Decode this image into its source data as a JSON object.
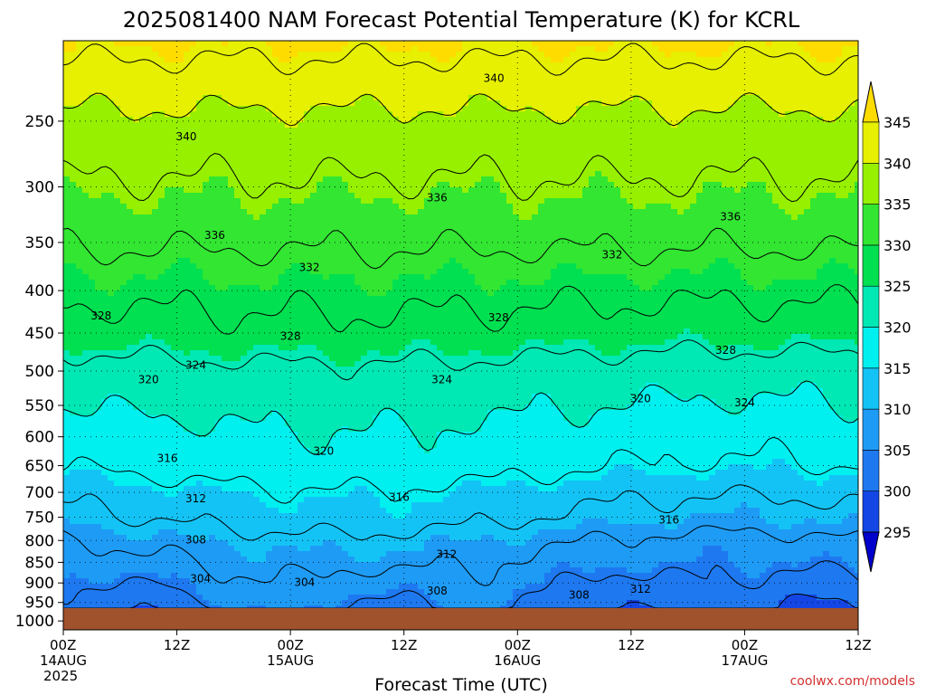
{
  "chart_data": {
    "type": "heatmap",
    "title": "2025081400 NAM Forecast Potential Temperature (K) for KCRL",
    "xlabel": "Forecast Time (UTC)",
    "ylabel": "",
    "credit": "coolwx.com/models",
    "y_scale": "pressure",
    "ylim": [
      1025,
      200
    ],
    "y_ticks": [
      "250",
      "300",
      "350",
      "400",
      "450",
      "500",
      "550",
      "600",
      "650",
      "700",
      "750",
      "800",
      "850",
      "900",
      "950",
      "1000"
    ],
    "x_ticks": [
      {
        "hours": 0,
        "line1": "00Z",
        "line2": "14AUG",
        "line3": "2025"
      },
      {
        "hours": 12,
        "line1": "12Z",
        "line2": "",
        "line3": ""
      },
      {
        "hours": 24,
        "line1": "00Z",
        "line2": "15AUG",
        "line3": ""
      },
      {
        "hours": 36,
        "line1": "12Z",
        "line2": "",
        "line3": ""
      },
      {
        "hours": 48,
        "line1": "00Z",
        "line2": "16AUG",
        "line3": ""
      },
      {
        "hours": 60,
        "line1": "12Z",
        "line2": "",
        "line3": ""
      },
      {
        "hours": 72,
        "line1": "00Z",
        "line2": "17AUG",
        "line3": ""
      },
      {
        "hours": 84,
        "line1": "12Z",
        "line2": "",
        "line3": ""
      }
    ],
    "xlim_hours": [
      0,
      84
    ],
    "colorbar": {
      "levels": [
        295,
        300,
        305,
        310,
        315,
        320,
        325,
        330,
        335,
        340,
        345
      ],
      "colors": [
        "#0000cc",
        "#1446e6",
        "#1e78f0",
        "#1e9bf5",
        "#14c3f5",
        "#00f0f0",
        "#00e8b4",
        "#00e050",
        "#32e632",
        "#96f000",
        "#e6f000",
        "#ffdc00"
      ],
      "labels": [
        "295",
        "300",
        "305",
        "310",
        "315",
        "320",
        "325",
        "330",
        "335",
        "340",
        "345"
      ]
    },
    "surface_pressure": 965,
    "contour_interval": 4,
    "contour_labels": [
      {
        "text": "340",
        "hours": 45.5,
        "p": 222
      },
      {
        "text": "340",
        "hours": 13.0,
        "p": 261
      },
      {
        "text": "336",
        "hours": 39.5,
        "p": 309
      },
      {
        "text": "336",
        "hours": 16.0,
        "p": 343
      },
      {
        "text": "336",
        "hours": 70.5,
        "p": 326
      },
      {
        "text": "332",
        "hours": 26.0,
        "p": 375
      },
      {
        "text": "332",
        "hours": 58.0,
        "p": 362
      },
      {
        "text": "328",
        "hours": 4.0,
        "p": 429
      },
      {
        "text": "328",
        "hours": 24.0,
        "p": 454
      },
      {
        "text": "328",
        "hours": 46.0,
        "p": 431
      },
      {
        "text": "328",
        "hours": 70.0,
        "p": 472
      },
      {
        "text": "324",
        "hours": 14.0,
        "p": 492
      },
      {
        "text": "324",
        "hours": 40.0,
        "p": 512
      },
      {
        "text": "324",
        "hours": 72.0,
        "p": 546
      },
      {
        "text": "320",
        "hours": 9.0,
        "p": 512
      },
      {
        "text": "320",
        "hours": 27.5,
        "p": 624
      },
      {
        "text": "320",
        "hours": 61.0,
        "p": 540
      },
      {
        "text": "316",
        "hours": 11.0,
        "p": 637
      },
      {
        "text": "316",
        "hours": 35.5,
        "p": 710
      },
      {
        "text": "316",
        "hours": 64.0,
        "p": 756
      },
      {
        "text": "312",
        "hours": 14.0,
        "p": 712
      },
      {
        "text": "312",
        "hours": 40.5,
        "p": 831
      },
      {
        "text": "312",
        "hours": 61.0,
        "p": 916
      },
      {
        "text": "308",
        "hours": 14.0,
        "p": 798
      },
      {
        "text": "308",
        "hours": 39.5,
        "p": 920
      },
      {
        "text": "308",
        "hours": 54.5,
        "p": 930
      },
      {
        "text": "304",
        "hours": 14.5,
        "p": 890
      },
      {
        "text": "304",
        "hours": 25.5,
        "p": 898
      }
    ]
  }
}
